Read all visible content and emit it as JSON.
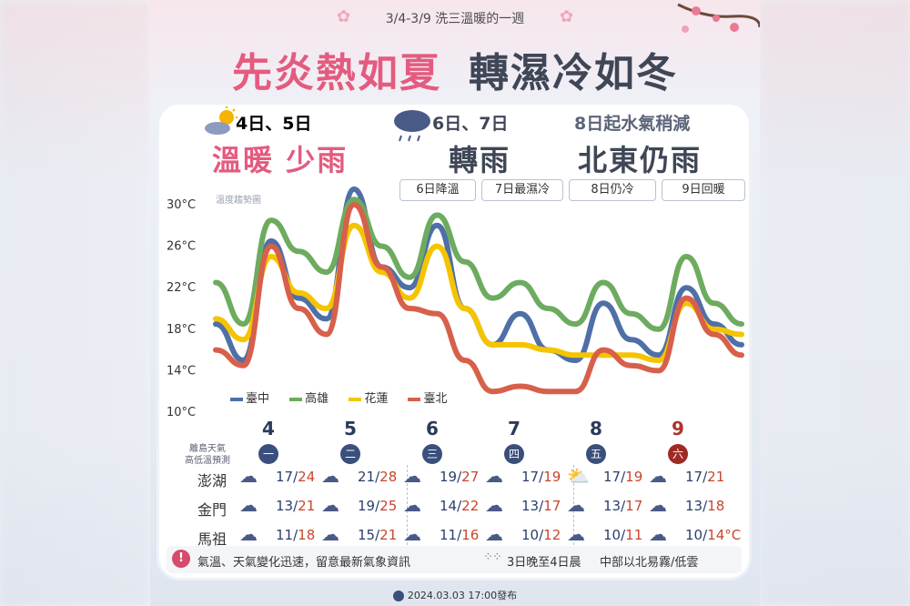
{
  "header": {
    "subtitle": "3/4-3/9  洗三溫暖的一週",
    "headline_hot": "先炎熱如夏",
    "headline_cold": "轉濕冷如冬"
  },
  "sections": [
    {
      "dates": "4日、5日",
      "summary": "溫暖  少雨",
      "color": "#e45b7f"
    },
    {
      "dates": "6日、7日",
      "summary": "轉雨",
      "color": "#3f4656"
    },
    {
      "dates": "8日起水氣稍減",
      "summary": "北東仍雨",
      "color": "#3f4656"
    }
  ],
  "tags": [
    "6日降溫",
    "7日最濕冷",
    "8日仍冷",
    "9日回暖"
  ],
  "trend_label": "溫度趨勢圖",
  "chart_data": {
    "type": "line",
    "y_ticks": [
      "30°C",
      "26°C",
      "22°C",
      "18°C",
      "14°C",
      "10°C"
    ],
    "ylim": [
      10,
      30
    ],
    "series": [
      {
        "name": "臺中",
        "color": "#4f6fa7",
        "values": [
          18.5,
          15,
          26.5,
          21,
          19,
          31.5,
          24,
          22,
          28,
          20,
          16.5,
          19.5,
          16,
          15,
          20.5,
          17,
          15.5,
          22,
          18.5,
          16.5
        ]
      },
      {
        "name": "高雄",
        "color": "#6dab5f",
        "values": [
          22.5,
          18.5,
          28.5,
          25.5,
          23.5,
          30.5,
          26,
          23,
          29,
          24.5,
          21,
          22.5,
          20,
          18.5,
          22.5,
          19.5,
          18,
          25,
          20.5,
          18.5
        ]
      },
      {
        "name": "花蓮",
        "color": "#f5c400",
        "values": [
          19,
          17,
          25,
          21.5,
          20,
          28,
          23.5,
          21,
          26,
          20,
          16.5,
          16.5,
          16,
          15.5,
          15.5,
          15.5,
          15,
          20.5,
          18,
          17.5
        ]
      },
      {
        "name": "臺北",
        "color": "#d7604a",
        "values": [
          16,
          14.5,
          26,
          20,
          17.5,
          30,
          24,
          20,
          19.5,
          15,
          12,
          12.5,
          12,
          12,
          16,
          14.5,
          14,
          21,
          17.5,
          15.5
        ]
      }
    ]
  },
  "days": [
    {
      "num": "4",
      "weekday": "一"
    },
    {
      "num": "5",
      "weekday": "二"
    },
    {
      "num": "6",
      "weekday": "三"
    },
    {
      "num": "7",
      "weekday": "四"
    },
    {
      "num": "8",
      "weekday": "五"
    },
    {
      "num": "9",
      "weekday": "六"
    }
  ],
  "island_label_1": "離島天氣",
  "island_label_2": "高低溫預測",
  "islands": [
    {
      "name": "澎湖",
      "temps": [
        [
          "17",
          "24"
        ],
        [
          "21",
          "28"
        ],
        [
          "19",
          "27"
        ],
        [
          "17",
          "19"
        ],
        [
          "17",
          "19"
        ],
        [
          "17",
          "21"
        ]
      ]
    },
    {
      "name": "金門",
      "temps": [
        [
          "13",
          "21"
        ],
        [
          "19",
          "25"
        ],
        [
          "14",
          "22"
        ],
        [
          "13",
          "17"
        ],
        [
          "13",
          "17"
        ],
        [
          "13",
          "18"
        ]
      ]
    },
    {
      "name": "馬祖",
      "temps": [
        [
          "11",
          "18"
        ],
        [
          "15",
          "21"
        ],
        [
          "11",
          "16"
        ],
        [
          "10",
          "12"
        ],
        [
          "10",
          "11"
        ],
        [
          "10",
          "14°C"
        ]
      ]
    }
  ],
  "warning": {
    "main": "氣溫、天氣變化迅速，留意最新氣象資訊",
    "fog_time": "3日晚至4日晨",
    "fog_note": "中部以北易霧/低雲"
  },
  "footer": "2024.03.03 17:00發布"
}
